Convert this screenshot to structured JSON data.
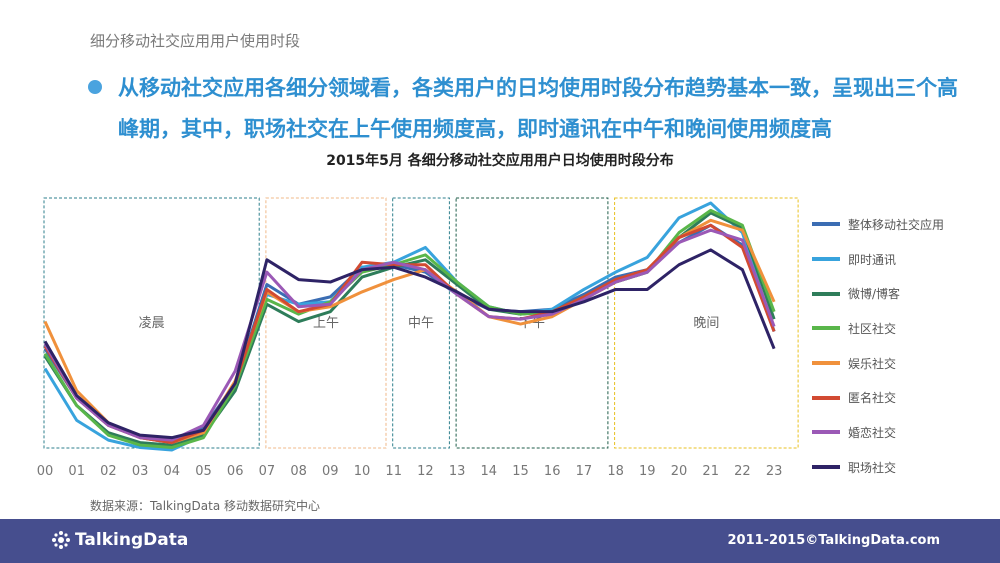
{
  "header": {
    "section_title": "细分移动社交应用用户使用时段",
    "headline": "从移动社交应用各细分领域看，各类用户的日均使用时段分布趋势基本一致，呈现出三个高峰期，其中，职场社交在上午使用频度高，即时通讯在中午和晚间使用频度高"
  },
  "chart_data": {
    "type": "line",
    "title": "2015年5月 各细分移动社交应用用户日均使用时段分布",
    "x": [
      "00",
      "01",
      "02",
      "03",
      "04",
      "05",
      "06",
      "07",
      "08",
      "09",
      "10",
      "11",
      "12",
      "13",
      "14",
      "15",
      "16",
      "17",
      "18",
      "19",
      "20",
      "21",
      "22",
      "23"
    ],
    "ylim": [
      0,
      100
    ],
    "grid": false,
    "legend_position": "right",
    "periods": [
      {
        "label": "凌晨",
        "start": "00",
        "end": "06",
        "color": "#2e7f8c"
      },
      {
        "label": "上午",
        "start": "07",
        "end": "10",
        "color": "#f0b98a"
      },
      {
        "label": "中午",
        "start": "11",
        "end": "12",
        "color": "#2e7f8c"
      },
      {
        "label": "下午",
        "start": "13",
        "end": "17",
        "color": "#1f5e4a"
      },
      {
        "label": "晚间",
        "start": "18",
        "end": "23",
        "color": "#e8c020"
      }
    ],
    "series": [
      {
        "name": "整体移动社交应用",
        "color": "#3b6db3",
        "values": [
          41,
          21,
          10,
          5,
          3,
          9,
          27,
          67,
          59,
          62,
          74,
          75,
          72,
          63,
          57,
          56,
          57,
          63,
          70,
          73,
          84,
          91,
          83,
          48
        ]
      },
      {
        "name": "即时通讯",
        "color": "#38a3dd",
        "values": [
          33,
          12,
          4,
          1,
          0,
          6,
          25,
          63,
          59,
          60,
          74,
          76,
          82,
          68,
          58,
          55,
          57,
          65,
          72,
          78,
          94,
          100,
          88,
          48
        ]
      },
      {
        "name": "微博/博客",
        "color": "#2e7d5a",
        "values": [
          38,
          18,
          7,
          3,
          2,
          6,
          24,
          59,
          52,
          56,
          70,
          74,
          77,
          67,
          57,
          55,
          56,
          62,
          68,
          72,
          86,
          96,
          90,
          53
        ]
      },
      {
        "name": "社区社交",
        "color": "#59b64a",
        "values": [
          39,
          18,
          6,
          2,
          1,
          5,
          26,
          61,
          55,
          60,
          72,
          75,
          79,
          68,
          58,
          55,
          56,
          62,
          68,
          72,
          88,
          97,
          91,
          56
        ]
      },
      {
        "name": "娱乐社交",
        "color": "#f0913c",
        "values": [
          52,
          24,
          11,
          5,
          3,
          7,
          28,
          64,
          56,
          58,
          64,
          69,
          73,
          64,
          54,
          51,
          54,
          61,
          68,
          73,
          86,
          93,
          89,
          60
        ]
      },
      {
        "name": "匿名社交",
        "color": "#d24a32",
        "values": [
          42,
          21,
          10,
          5,
          3,
          8,
          27,
          65,
          56,
          59,
          76,
          75,
          75,
          63,
          54,
          53,
          56,
          62,
          69,
          73,
          86,
          91,
          82,
          48
        ]
      },
      {
        "name": "婚恋社交",
        "color": "#9b59b6",
        "values": [
          43,
          21,
          10,
          5,
          4,
          10,
          32,
          72,
          58,
          59,
          73,
          76,
          73,
          63,
          54,
          53,
          55,
          61,
          68,
          72,
          84,
          89,
          85,
          50
        ]
      },
      {
        "name": "职场社交",
        "color": "#2e2366",
        "values": [
          44,
          22,
          11,
          6,
          5,
          8,
          27,
          77,
          69,
          68,
          73,
          74,
          70,
          64,
          57,
          56,
          56,
          60,
          65,
          65,
          75,
          81,
          73,
          41
        ]
      }
    ]
  },
  "footer": {
    "source": "数据来源：TalkingData 移动数据研究中心",
    "logo_text": "TalkingData",
    "copyright": "2011-2015©TalkingData.com"
  }
}
